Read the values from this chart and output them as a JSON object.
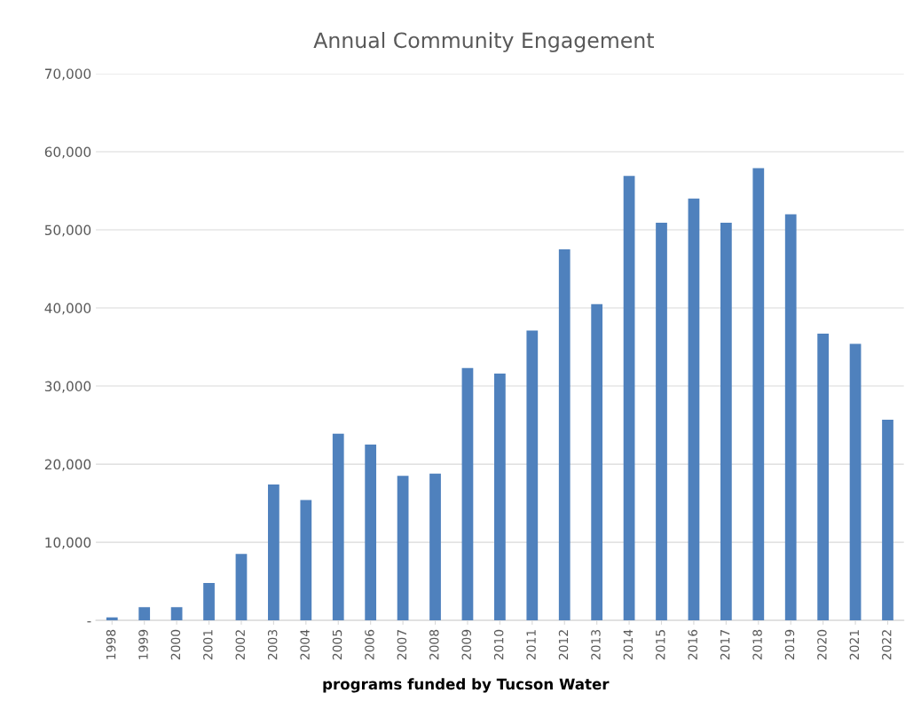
{
  "chart_data": {
    "type": "bar",
    "title": "Annual Community Engagement",
    "categories": [
      "1998",
      "1999",
      "2000",
      "2001",
      "2002",
      "2003",
      "2004",
      "2005",
      "2006",
      "2007",
      "2008",
      "2009",
      "2010",
      "2011",
      "2012",
      "2013",
      "2014",
      "2015",
      "2016",
      "2017",
      "2018",
      "2019",
      "2020",
      "2021",
      "2022"
    ],
    "values": [
      400,
      1700,
      1700,
      4800,
      8500,
      17400,
      15400,
      23900,
      22500,
      18500,
      18800,
      32300,
      31600,
      37100,
      47500,
      40500,
      56900,
      50900,
      54000,
      50900,
      57900,
      52000,
      36700,
      35400,
      25700
    ],
    "color": "#4f81bd",
    "ylim": [
      0,
      70000
    ],
    "yticks": [
      {
        "value": 0,
        "label": "-"
      },
      {
        "value": 10000,
        "label": "10,000"
      },
      {
        "value": 20000,
        "label": "20,000"
      },
      {
        "value": 30000,
        "label": "30,000"
      },
      {
        "value": 40000,
        "label": "40,000"
      },
      {
        "value": 50000,
        "label": "50,000"
      },
      {
        "value": 60000,
        "label": "60,000"
      },
      {
        "value": 70000,
        "label": "70,000"
      }
    ],
    "grid": "y",
    "annotations": [
      "programs funded by Tucson Water"
    ]
  }
}
